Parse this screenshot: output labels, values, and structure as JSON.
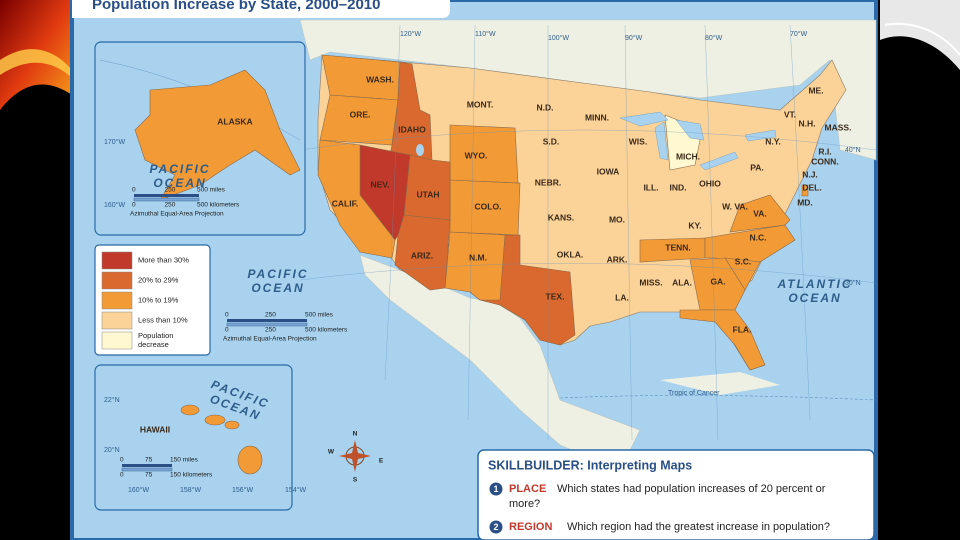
{
  "title": "Population Increase by State, 2000–2010",
  "legend": [
    {
      "label": [
        "More than 30%"
      ],
      "color": "#c0392b"
    },
    {
      "label": [
        "20% to 29%"
      ],
      "color": "#d9692e"
    },
    {
      "label": [
        "10% to 19%"
      ],
      "color": "#f29a36"
    },
    {
      "label": [
        "Less than 10%"
      ],
      "color": "#fbd298"
    },
    {
      "label": [
        "Population",
        "decrease"
      ],
      "color": "#fff8d0"
    }
  ],
  "states": [
    {
      "label": "WASH.",
      "color": "#f29a36"
    },
    {
      "label": "ORE.",
      "color": "#f29a36"
    },
    {
      "label": "IDAHO",
      "color": "#d9692e"
    },
    {
      "label": "MONT.",
      "color": "#fbd298"
    },
    {
      "label": "N.D.",
      "color": "#fbd298"
    },
    {
      "label": "MINN.",
      "color": "#fbd298"
    },
    {
      "label": "WIS.",
      "color": "#fbd298"
    },
    {
      "label": "MICH.",
      "color": "#fff8d0"
    },
    {
      "label": "N.Y.",
      "color": "#fbd298"
    },
    {
      "label": "VT.",
      "color": "#fbd298"
    },
    {
      "label": "N.H.",
      "color": "#fbd298"
    },
    {
      "label": "ME.",
      "color": "#fbd298"
    },
    {
      "label": "MASS.",
      "color": "#fbd298"
    },
    {
      "label": "R.I.",
      "color": "#fbd298"
    },
    {
      "label": "CONN.",
      "color": "#fbd298"
    },
    {
      "label": "N.J.",
      "color": "#fbd298"
    },
    {
      "label": "DEL.",
      "color": "#f29a36"
    },
    {
      "label": "MD.",
      "color": "#fbd298"
    },
    {
      "label": "PA.",
      "color": "#fbd298"
    },
    {
      "label": "OHIO",
      "color": "#fbd298"
    },
    {
      "label": "IND.",
      "color": "#fbd298"
    },
    {
      "label": "ILL.",
      "color": "#fbd298"
    },
    {
      "label": "W. VA.",
      "color": "#fbd298"
    },
    {
      "label": "VA.",
      "color": "#f29a36"
    },
    {
      "label": "KY.",
      "color": "#fbd298"
    },
    {
      "label": "TENN.",
      "color": "#f29a36"
    },
    {
      "label": "N.C.",
      "color": "#f29a36"
    },
    {
      "label": "S.C.",
      "color": "#f29a36"
    },
    {
      "label": "GA.",
      "color": "#f29a36"
    },
    {
      "label": "FLA.",
      "color": "#f29a36"
    },
    {
      "label": "ALA.",
      "color": "#fbd298"
    },
    {
      "label": "MISS.",
      "color": "#fbd298"
    },
    {
      "label": "LA.",
      "color": "#fbd298"
    },
    {
      "label": "ARK.",
      "color": "#fbd298"
    },
    {
      "label": "MO.",
      "color": "#fbd298"
    },
    {
      "label": "IOWA",
      "color": "#fbd298"
    },
    {
      "label": "NEBR.",
      "color": "#fbd298"
    },
    {
      "label": "S.D.",
      "color": "#fbd298"
    },
    {
      "label": "KANS.",
      "color": "#fbd298"
    },
    {
      "label": "OKLA.",
      "color": "#fbd298"
    },
    {
      "label": "TEX.",
      "color": "#d9692e"
    },
    {
      "label": "N.M.",
      "color": "#f29a36"
    },
    {
      "label": "COLO.",
      "color": "#f29a36"
    },
    {
      "label": "WYO.",
      "color": "#f29a36"
    },
    {
      "label": "UTAH",
      "color": "#d9692e"
    },
    {
      "label": "NEV.",
      "color": "#c0392b"
    },
    {
      "label": "ARIZ.",
      "color": "#d9692e"
    },
    {
      "label": "CALIF.",
      "color": "#f29a36"
    },
    {
      "label": "ALASKA",
      "color": "#f29a36"
    },
    {
      "label": "HAWAII",
      "color": "#f29a36"
    }
  ],
  "oceans": [
    [
      "PACIFIC",
      "OCEAN"
    ],
    [
      "ATLANTIC",
      "OCEAN"
    ],
    [
      "PACIFIC",
      "OCEAN"
    ],
    [
      "PACIFIC",
      "OCEAN"
    ]
  ],
  "graticule": [
    "120°W",
    "110°W",
    "100°W",
    "90°W",
    "80°W",
    "70°W",
    "40°N",
    "30°N",
    "170°W",
    "160°W",
    "22°N",
    "20°N",
    "160°W",
    "158°W",
    "156°W",
    "154°W"
  ],
  "tropic": "Tropic of Cancer",
  "compass": [
    "N",
    "E",
    "S",
    "W"
  ],
  "scales": [
    {
      "miles": [
        "0",
        "250",
        "500 miles"
      ],
      "km": [
        "0",
        "250",
        "500 kilometers"
      ],
      "note": "Azimuthal Equal-Area Projection"
    },
    {
      "miles": [
        "0",
        "250",
        "500 miles"
      ],
      "km": [
        "0",
        "250",
        "500 kilometers"
      ],
      "note": "Azimuthal Equal-Area Projection"
    },
    {
      "miles": [
        "0",
        "75",
        "150 miles"
      ],
      "km": [
        "0",
        "75",
        "150 kilometers"
      ]
    }
  ],
  "skillbuilder": {
    "heading": "SKILLBUILDER: Interpreting Maps",
    "items": [
      {
        "num": "1",
        "key": "PLACE",
        "text": "Which states had population increases of 20 percent or",
        "text2": "more?"
      },
      {
        "num": "2",
        "key": "REGION",
        "text": "Which region had the greatest increase in population?"
      }
    ]
  }
}
